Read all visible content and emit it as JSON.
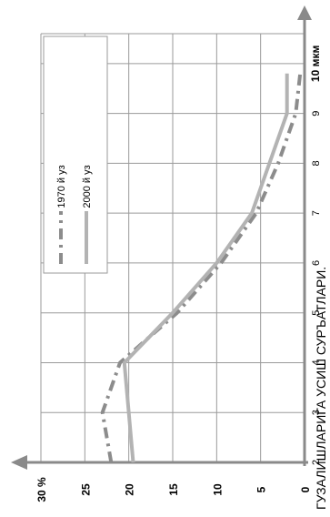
{
  "colors": {
    "axis": "#8a8a8a",
    "grid": "#9a9a9a",
    "series_1970": "#8c8c8c",
    "series_2000": "#b3b3b3",
    "background": "#ffffff"
  },
  "title_fragment": "ГУЗАЛИШЛАРИГА УСИШ СУРЪАТЛАРИ.",
  "chart_data": {
    "type": "line",
    "orientation": "rotated 90 degrees clockwise",
    "xlabel": "",
    "ylabel": "",
    "x": [
      2,
      3,
      4,
      5,
      6,
      7,
      8,
      9,
      10
    ],
    "x_tick_labels": [
      "2",
      "3",
      "4",
      "5",
      "6",
      "7",
      "8",
      "9",
      "10 мкм"
    ],
    "xlim": [
      2,
      10.6
    ],
    "ylim": [
      0,
      30
    ],
    "y_ticks": [
      0,
      5,
      10,
      15,
      20,
      25,
      30
    ],
    "y_tick_labels": [
      "0",
      "5",
      "10",
      "15",
      "20",
      "25",
      "30 %"
    ],
    "grid": true,
    "legend_position": "upper-left of plot (rotated)",
    "series": [
      {
        "name": "1970 й уз",
        "style": "dash-dot",
        "points": [
          [
            2,
            22
          ],
          [
            3,
            23
          ],
          [
            4,
            21
          ],
          [
            5,
            14.5
          ],
          [
            6,
            9.5
          ],
          [
            7,
            5.5
          ],
          [
            8,
            3
          ],
          [
            9,
            1
          ],
          [
            9.8,
            0.5
          ]
        ]
      },
      {
        "name": "2000 й уз",
        "style": "solid",
        "points": [
          [
            2,
            19.5
          ],
          [
            4,
            20.5
          ],
          [
            5,
            15
          ],
          [
            6,
            10
          ],
          [
            7,
            6
          ],
          [
            9,
            2
          ],
          [
            9.8,
            2
          ]
        ]
      }
    ]
  }
}
